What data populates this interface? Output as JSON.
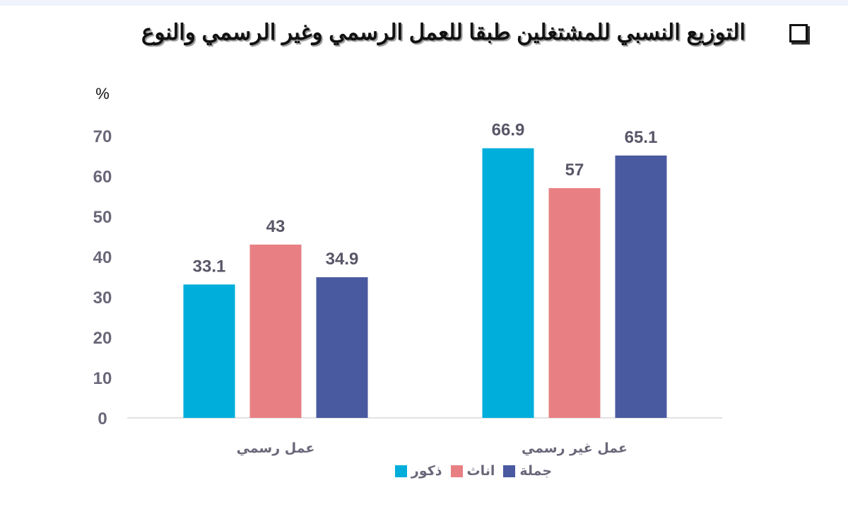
{
  "title": "التوزيع النسبي للمشتغلين طبقا للعمل الرسمي وغير الرسمي والنوع",
  "title_icon": "checkbox-square-icon",
  "chart_data": {
    "type": "bar",
    "title": "التوزيع النسبي للمشتغلين طبقا للعمل الرسمي وغير الرسمي والنوع",
    "ylabel": "%",
    "xlabel": "",
    "ylim": [
      0,
      70
    ],
    "yticks": [
      0,
      10,
      20,
      30,
      40,
      50,
      60,
      70
    ],
    "grid": false,
    "legend_position": "bottom",
    "categories": [
      "عمل رسمي",
      "عمل غير رسمي"
    ],
    "series": [
      {
        "name": "ذكور",
        "color": "#00AEDB",
        "values": [
          33.1,
          66.9
        ]
      },
      {
        "name": "اناث",
        "color": "#E88083",
        "values": [
          43,
          57
        ]
      },
      {
        "name": "جملة",
        "color": "#4A5AA0",
        "values": [
          34.9,
          65.1
        ]
      }
    ]
  }
}
